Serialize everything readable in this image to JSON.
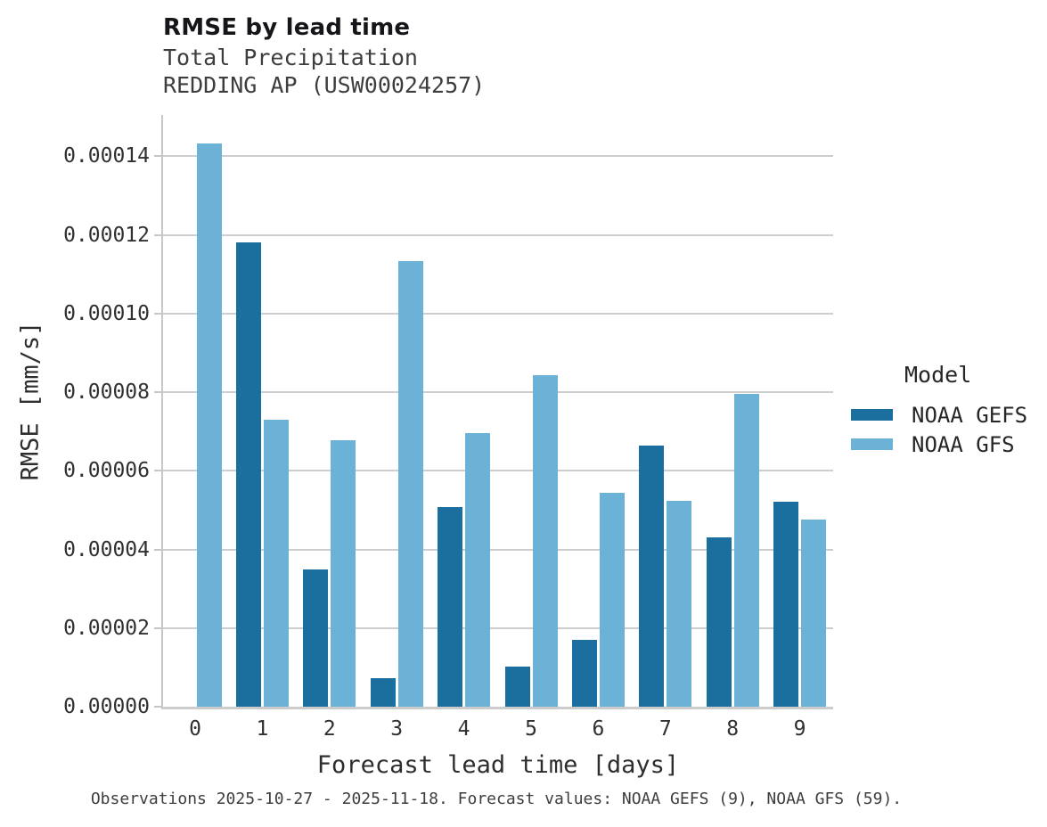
{
  "footer": {
    "caption": "Observations 2025-10-27 - 2025-11-18. Forecast values: NOAA GEFS (9), NOAA GFS (59)."
  },
  "colors": {
    "gefs_dark_blue": "#1a6f9e",
    "gfs_light_blue": "#6cb1d6",
    "gridline_gray": "#cdcdcd",
    "axis_gray": "#c6c6c6"
  },
  "chart_data": {
    "type": "bar",
    "title": "RMSE by lead time",
    "subtitle_lines": [
      "Total Precipitation",
      "REDDING AP (USW00024257)"
    ],
    "xlabel": "Forecast lead time [days]",
    "ylabel": "RMSE [mm/s]",
    "categories": [
      0,
      1,
      2,
      3,
      4,
      5,
      6,
      7,
      8,
      9
    ],
    "series": [
      {
        "name": "NOAA GEFS",
        "color": "#1a6f9e",
        "values": [
          null,
          0.000118,
          3.5e-05,
          7.3e-06,
          5.07e-05,
          1.02e-05,
          1.71e-05,
          6.64e-05,
          4.3e-05,
          5.21e-05
        ]
      },
      {
        "name": "NOAA GFS",
        "color": "#6cb1d6",
        "values": [
          0.0001432,
          7.29e-05,
          6.78e-05,
          0.0001133,
          6.95e-05,
          8.43e-05,
          5.45e-05,
          5.24e-05,
          7.96e-05,
          4.77e-05
        ]
      }
    ],
    "ylim": [
      0,
      0.0001505
    ],
    "yticks": [
      0,
      2e-05,
      4e-05,
      6e-05,
      8e-05,
      0.0001,
      0.00012,
      0.00014
    ],
    "ytick_labels": [
      "0.00000",
      "0.00002",
      "0.00004",
      "0.00006",
      "0.00008",
      "0.00010",
      "0.00012",
      "0.00014"
    ],
    "grid": true,
    "legend_title": "Model",
    "legend_position": "right"
  }
}
